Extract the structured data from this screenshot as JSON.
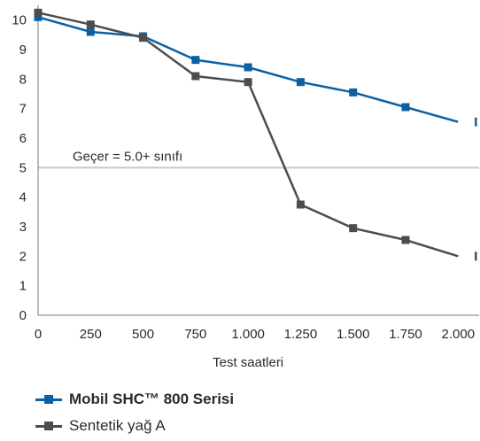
{
  "chart_data": {
    "type": "line",
    "xlabel": "Test saatleri",
    "ylabel": "",
    "x_ticks": [
      0,
      250,
      500,
      750,
      1000,
      1250,
      1500,
      1750,
      2000
    ],
    "x_tick_labels": [
      "0",
      "250",
      "500",
      "750",
      "1.000",
      "1.250",
      "1.500",
      "1.750",
      "2.000"
    ],
    "y_ticks": [
      0,
      1,
      2,
      3,
      4,
      5,
      6,
      7,
      8,
      9,
      10
    ],
    "ylim": [
      0,
      10.5
    ],
    "xlim": [
      0,
      2100
    ],
    "grid": false,
    "legend_position": "bottom-left",
    "reference_line": {
      "y": 5.0,
      "label": "Geçer = 5.0+ sınıfı",
      "color": "#c8c8c8"
    },
    "series": [
      {
        "name": "Mobil SHC™ 800 Serisi",
        "color": "#0b61a4",
        "bold": true,
        "x": [
          0,
          250,
          500,
          750,
          1000,
          1250,
          1500,
          1750,
          2000
        ],
        "y": [
          10.1,
          9.6,
          9.45,
          8.65,
          8.4,
          7.9,
          7.55,
          7.05,
          6.55
        ]
      },
      {
        "name": "Sentetik yağ A",
        "color": "#4d4d4d",
        "bold": false,
        "x": [
          0,
          250,
          500,
          750,
          1000,
          1250,
          1500,
          1750,
          2000
        ],
        "y": [
          10.25,
          9.85,
          9.4,
          8.1,
          7.9,
          3.75,
          2.95,
          2.55,
          2.0
        ]
      }
    ]
  }
}
